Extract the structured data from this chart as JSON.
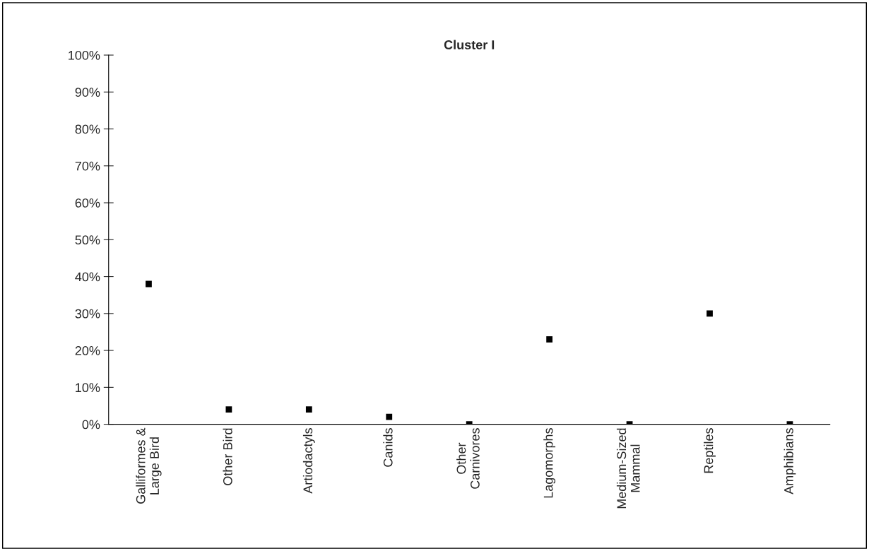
{
  "chart_data": {
    "type": "scatter",
    "title": "Cluster I",
    "categories": [
      "Galliformes &\nLarge Bird",
      "Other Bird",
      "Artiodactyls",
      "Canids",
      "Other\nCarnivores",
      "Lagomorphs",
      "Medium-Sized\nMammal",
      "Reptiles",
      "Amphibians"
    ],
    "values": [
      38,
      4,
      4,
      2,
      0,
      23,
      0,
      30,
      0
    ],
    "color": "#000000",
    "marker": "square",
    "ylim": [
      0,
      100
    ],
    "yticks": [
      {
        "value": 0,
        "label": "0%"
      },
      {
        "value": 10,
        "label": "10%"
      },
      {
        "value": 20,
        "label": "20%"
      },
      {
        "value": 30,
        "label": "30%"
      },
      {
        "value": 40,
        "label": "40%"
      },
      {
        "value": 50,
        "label": "50%"
      },
      {
        "value": 60,
        "label": "60%"
      },
      {
        "value": 70,
        "label": "70%"
      },
      {
        "value": 80,
        "label": "80%"
      },
      {
        "value": 90,
        "label": "90%"
      },
      {
        "value": 100,
        "label": "100%"
      }
    ],
    "grid": false,
    "legend": false
  }
}
